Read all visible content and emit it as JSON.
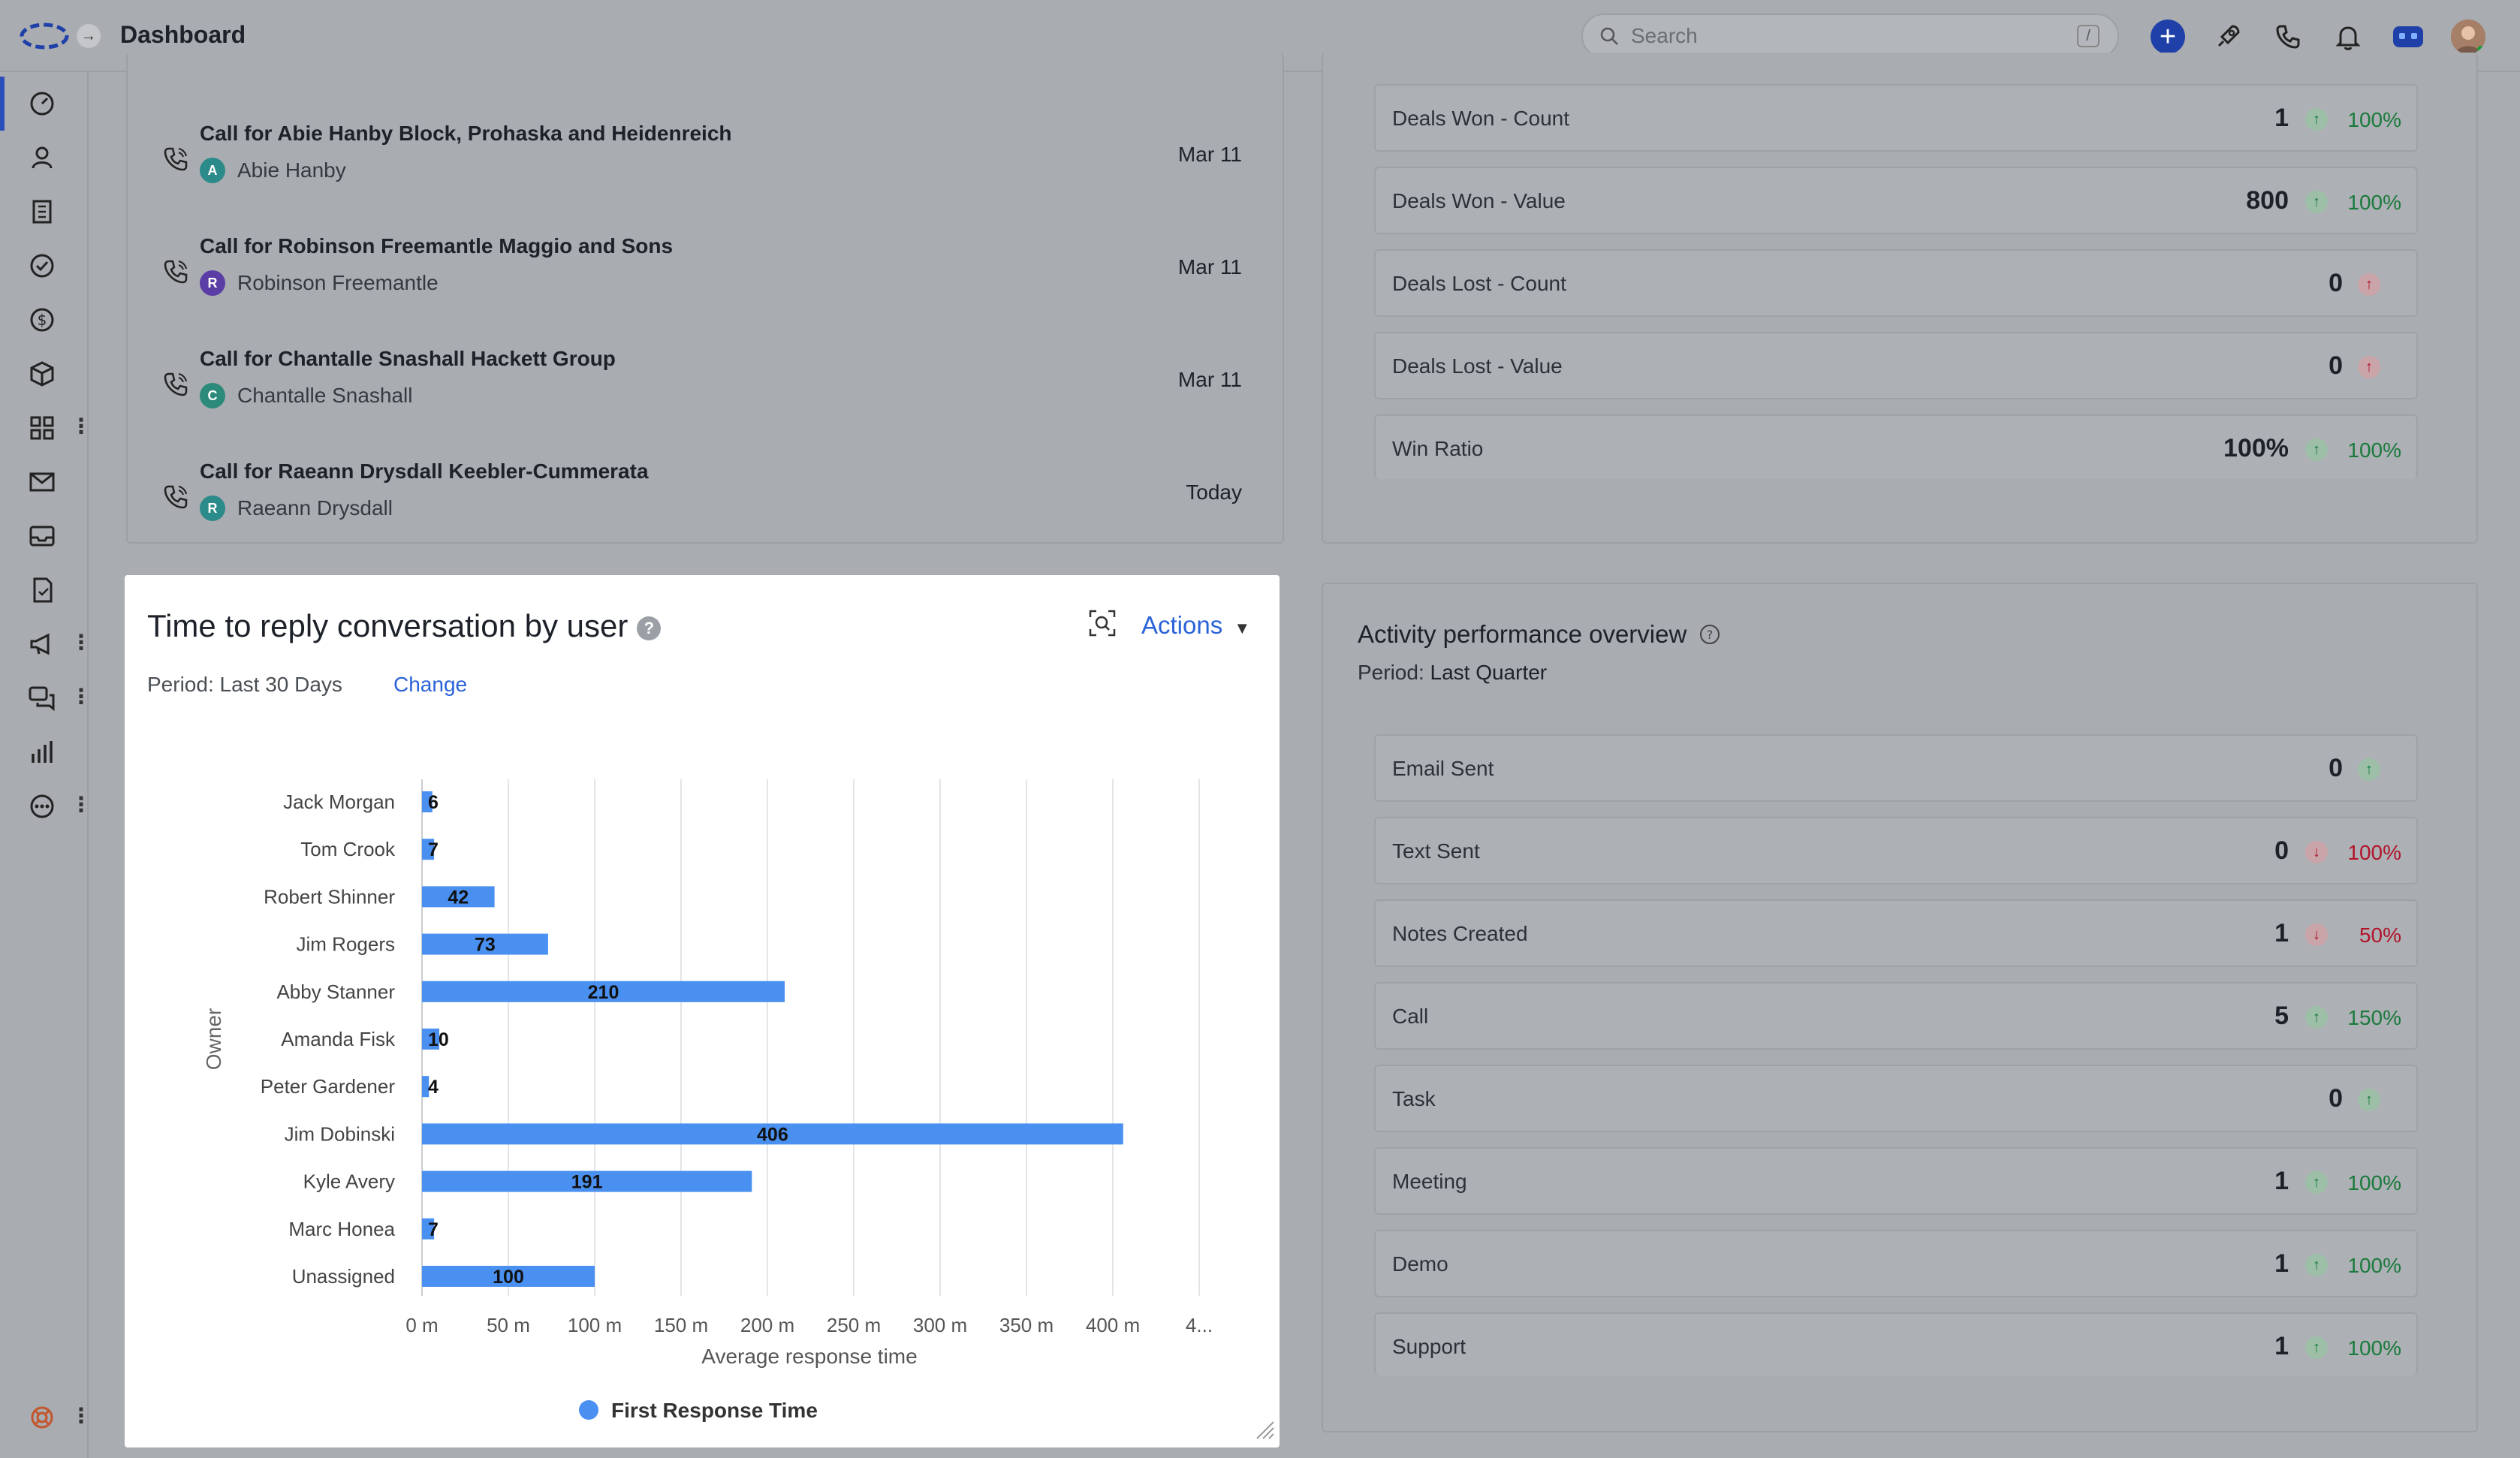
{
  "header": {
    "title": "Dashboard",
    "search_placeholder": "Search",
    "search_shortcut": "/"
  },
  "sidebar": {
    "items": [
      "dashboard-icon",
      "contacts-icon",
      "accounts-icon",
      "tasks-icon",
      "deals-icon",
      "products-icon",
      "apps-icon",
      "email-icon",
      "inbox-icon",
      "documents-icon",
      "campaigns-icon",
      "chat-icon",
      "reports-icon",
      "more-icon",
      "help-icon"
    ]
  },
  "calls": [
    {
      "title": "Call for Abie Hanby Block, Prohaska and Heidenreich",
      "contact_initial": "A",
      "contact": "Abie Hanby",
      "date": "Mar 11",
      "badge_color": "#2b8a8a"
    },
    {
      "title": "Call for Robinson Freemantle Maggio and Sons",
      "contact_initial": "R",
      "contact": "Robinson Freemantle",
      "date": "Mar 11",
      "badge_color": "#5b3da6"
    },
    {
      "title": "Call for Chantalle Snashall Hackett Group",
      "contact_initial": "C",
      "contact": "Chantalle Snashall",
      "date": "Mar 11",
      "badge_color": "#2b8a7a"
    },
    {
      "title": "Call for Raeann Drysdall Keebler-Cummerata",
      "contact_initial": "R",
      "contact": "Raeann Drysdall",
      "date": "Today",
      "badge_color": "#2b8a8a"
    }
  ],
  "deals": [
    {
      "label": "Deals Won - Count",
      "value": "1",
      "trend": "up",
      "pct": "100%"
    },
    {
      "label": "Deals Won - Value",
      "value": "800",
      "trend": "up",
      "pct": "100%"
    },
    {
      "label": "Deals Lost - Count",
      "value": "0",
      "trend": "up-red",
      "pct": ""
    },
    {
      "label": "Deals Lost - Value",
      "value": "0",
      "trend": "up-red",
      "pct": ""
    },
    {
      "label": "Win Ratio",
      "value": "100%",
      "trend": "up",
      "pct": "100%"
    }
  ],
  "activity": {
    "title": "Activity performance overview",
    "period_label": "Period:",
    "period_value": "Last Quarter",
    "rows": [
      {
        "label": "Email Sent",
        "value": "0",
        "trend": "up",
        "pct": ""
      },
      {
        "label": "Text Sent",
        "value": "0",
        "trend": "down",
        "pct": "100%"
      },
      {
        "label": "Notes Created",
        "value": "1",
        "trend": "down",
        "pct": "50%"
      },
      {
        "label": "Call",
        "value": "5",
        "trend": "up",
        "pct": "150%"
      },
      {
        "label": "Task",
        "value": "0",
        "trend": "up",
        "pct": ""
      },
      {
        "label": "Meeting",
        "value": "1",
        "trend": "up",
        "pct": "100%"
      },
      {
        "label": "Demo",
        "value": "1",
        "trend": "up",
        "pct": "100%"
      },
      {
        "label": "Support",
        "value": "1",
        "trend": "up",
        "pct": "100%"
      }
    ]
  },
  "chart_card": {
    "title": "Time to reply conversation by user",
    "period": "Period: Last 30 Days",
    "change": "Change",
    "actions": "Actions"
  },
  "chart_data": {
    "type": "bar",
    "orientation": "horizontal",
    "categories": [
      "Jack Morgan",
      "Tom Crook",
      "Robert Shinner",
      "Jim Rogers",
      "Abby Stanner",
      "Amanda Fisk",
      "Peter Gardener",
      "Jim Dobinski",
      "Kyle Avery",
      "Marc Honea",
      "Unassigned"
    ],
    "series": [
      {
        "name": "First Response Time",
        "values": [
          6,
          7,
          42,
          73,
          210,
          10,
          4,
          406,
          191,
          7,
          100
        ],
        "color": "#4a90f0"
      }
    ],
    "x_ticks": [
      "0 m",
      "50 m",
      "100 m",
      "150 m",
      "200 m",
      "250 m",
      "300 m",
      "350 m",
      "400 m",
      "4..."
    ],
    "xlim": [
      0,
      450
    ],
    "xlabel": "Average response time",
    "ylabel": "Owner",
    "grid": true,
    "legend": "bottom"
  }
}
